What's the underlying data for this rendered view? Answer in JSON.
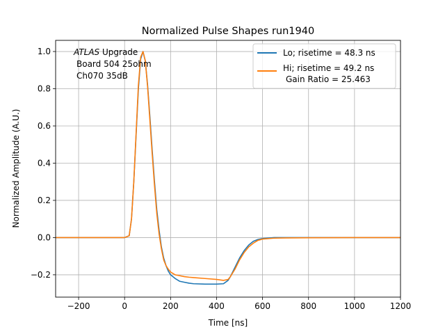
{
  "chart_data": {
    "type": "line",
    "title": "Normalized Pulse Shapes run1940",
    "xlabel": "Time [ns]",
    "ylabel": "Normalized Amplitude (A.U.)",
    "xlim": [
      -300,
      1200
    ],
    "ylim": [
      -0.32,
      1.06
    ],
    "xticks": [
      -200,
      0,
      200,
      400,
      600,
      800,
      1000,
      1200
    ],
    "xtick_labels": [
      "−200",
      "0",
      "200",
      "400",
      "600",
      "800",
      "1000",
      "1200"
    ],
    "yticks": [
      -0.2,
      0.0,
      0.2,
      0.4,
      0.6,
      0.8,
      1.0
    ],
    "ytick_labels": [
      "−0.2",
      "0.0",
      "0.2",
      "0.4",
      "0.6",
      "0.8",
      "1.0"
    ],
    "grid": true,
    "legend_position": "top-right",
    "annotation": {
      "italic": "ATLAS",
      "rest": " Upgrade",
      "line2": "Board 504 25ohm",
      "line3": "Ch070 35dB"
    },
    "series": [
      {
        "name": "Lo; risetime = 48.3 ns",
        "color": "#1f77b4",
        "x": [
          -300,
          -200,
          -100,
          0,
          20,
          30,
          40,
          50,
          60,
          70,
          80,
          90,
          100,
          110,
          120,
          130,
          140,
          150,
          160,
          170,
          180,
          190,
          200,
          220,
          240,
          260,
          280,
          300,
          350,
          400,
          430,
          450,
          460,
          480,
          500,
          520,
          540,
          560,
          580,
          600,
          650,
          700,
          800,
          1000,
          1200
        ],
        "y": [
          0.0,
          0.0,
          0.0,
          0.0,
          0.01,
          0.1,
          0.3,
          0.55,
          0.8,
          0.96,
          1.0,
          0.95,
          0.82,
          0.65,
          0.47,
          0.3,
          0.15,
          0.04,
          -0.05,
          -0.11,
          -0.15,
          -0.18,
          -0.2,
          -0.22,
          -0.235,
          -0.24,
          -0.245,
          -0.248,
          -0.25,
          -0.25,
          -0.248,
          -0.23,
          -0.21,
          -0.16,
          -0.11,
          -0.07,
          -0.04,
          -0.02,
          -0.01,
          -0.005,
          0.0,
          0.0,
          0.0,
          0.0,
          0.0
        ]
      },
      {
        "name": "Hi; risetime = 49.2 ns",
        "name_line2": "Gain Ratio = 25.463",
        "color": "#ff7f0e",
        "x": [
          -300,
          -200,
          -100,
          0,
          20,
          30,
          40,
          50,
          60,
          70,
          80,
          90,
          100,
          110,
          120,
          130,
          140,
          150,
          160,
          170,
          180,
          190,
          200,
          220,
          240,
          260,
          280,
          300,
          350,
          400,
          430,
          450,
          460,
          480,
          500,
          520,
          540,
          560,
          580,
          600,
          650,
          700,
          800,
          1000,
          1200
        ],
        "y": [
          0.0,
          0.0,
          0.0,
          0.0,
          0.01,
          0.1,
          0.3,
          0.56,
          0.82,
          0.97,
          1.0,
          0.95,
          0.81,
          0.63,
          0.45,
          0.28,
          0.13,
          0.02,
          -0.06,
          -0.12,
          -0.15,
          -0.17,
          -0.185,
          -0.2,
          -0.205,
          -0.21,
          -0.213,
          -0.215,
          -0.22,
          -0.225,
          -0.23,
          -0.225,
          -0.21,
          -0.17,
          -0.12,
          -0.08,
          -0.05,
          -0.03,
          -0.015,
          -0.008,
          -0.003,
          -0.002,
          -0.001,
          0.0,
          0.0
        ]
      }
    ]
  }
}
